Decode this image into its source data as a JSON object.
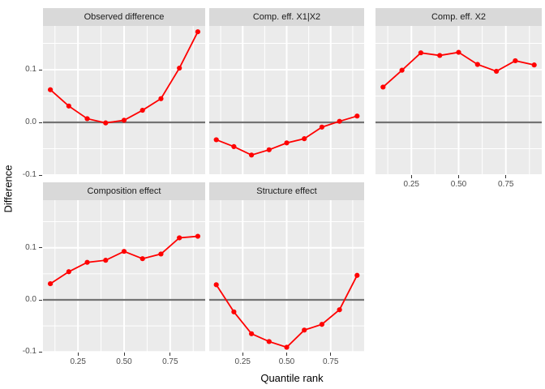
{
  "chart_data": {
    "type": "line",
    "title": "",
    "xlabel": "Quantile rank",
    "ylabel": "Difference",
    "x": [
      0.1,
      0.2,
      0.3,
      0.4,
      0.5,
      0.6,
      0.7,
      0.8,
      0.9
    ],
    "facets": [
      {
        "title": "Observed difference",
        "row": 0,
        "col": 0,
        "values": [
          0.062,
          0.031,
          0.007,
          -0.001,
          0.004,
          0.023,
          0.045,
          0.103,
          0.172
        ]
      },
      {
        "title": "Comp. eff. X1|X2",
        "row": 0,
        "col": 1,
        "values": [
          -0.033,
          -0.046,
          -0.062,
          -0.052,
          -0.039,
          -0.031,
          -0.009,
          0.002,
          0.012
        ]
      },
      {
        "title": "Comp. eff. X2",
        "row": 0,
        "col": 2,
        "values": [
          0.067,
          0.099,
          0.132,
          0.127,
          0.133,
          0.11,
          0.097,
          0.117,
          0.109
        ]
      },
      {
        "title": "Composition effect",
        "row": 1,
        "col": 0,
        "values": [
          0.031,
          0.054,
          0.072,
          0.076,
          0.093,
          0.079,
          0.088,
          0.119,
          0.122
        ]
      },
      {
        "title": "Structure effect",
        "row": 1,
        "col": 1,
        "values": [
          0.029,
          -0.023,
          -0.065,
          -0.08,
          -0.091,
          -0.058,
          -0.047,
          -0.019,
          0.047
        ]
      }
    ],
    "xlim": [
      0.06,
      0.94
    ],
    "ylim": [
      -0.104,
      0.185
    ],
    "x_ticks": [
      0.25,
      0.5,
      0.75
    ],
    "x_tick_labels": [
      "0.25",
      "0.50",
      "0.75"
    ],
    "x_minor_ticks": [
      0.125,
      0.375,
      0.625,
      0.875
    ],
    "y_ticks": [
      0.1,
      0.0,
      -0.1
    ],
    "y_tick_labels": [
      "0.1",
      "0.0",
      "-0.1"
    ],
    "y_minor_ticks": [
      0.15,
      0.05,
      -0.05
    ],
    "zero_line": 0,
    "grid": true,
    "legend": false,
    "colors": {
      "line": "#FF0000",
      "point": "#FF0000",
      "panel_bg": "#EBEBEB",
      "strip_bg": "#D9D9D9",
      "grid": "#FFFFFF",
      "zero_line": "#737373",
      "axis_text": "#4D4D4D",
      "strip_text": "#1A1A1A"
    }
  }
}
